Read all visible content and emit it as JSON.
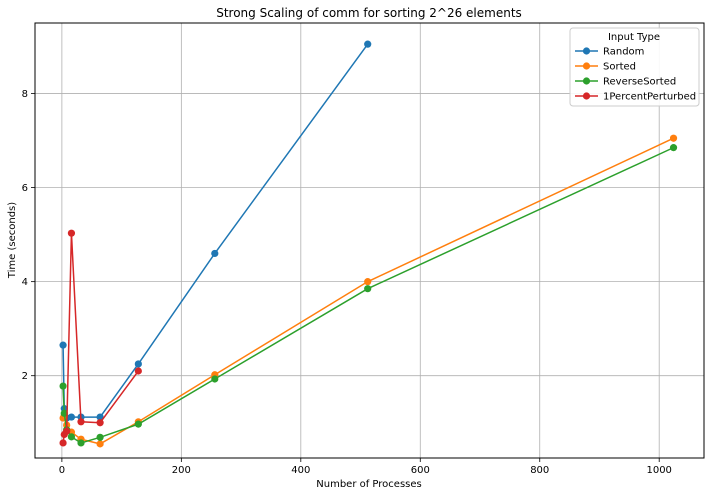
{
  "chart_data": {
    "type": "line",
    "title": "Strong Scaling of comm for sorting 2^26 elements",
    "xlabel": "Number of Processes",
    "ylabel": "Time (seconds)",
    "xlim": [
      -45,
      1075
    ],
    "ylim": [
      0.25,
      9.5
    ],
    "xticks": [
      0,
      200,
      400,
      600,
      800,
      1000
    ],
    "yticks": [
      2,
      4,
      6,
      8
    ],
    "grid": true,
    "legend": {
      "title": "Input Type",
      "placement": "top-right"
    },
    "series": [
      {
        "name": "Random",
        "color": "#1f77b4",
        "x": [
          2,
          4,
          8,
          16,
          32,
          64,
          128,
          256,
          512
        ],
        "y": [
          2.65,
          1.3,
          1.1,
          1.12,
          1.12,
          1.12,
          2.25,
          4.6,
          9.05
        ]
      },
      {
        "name": "Sorted",
        "color": "#ff7f0e",
        "x": [
          2,
          4,
          8,
          16,
          32,
          64,
          128,
          256,
          512,
          1024
        ],
        "y": [
          1.1,
          1.15,
          0.95,
          0.8,
          0.65,
          0.55,
          1.02,
          2.02,
          4.0,
          7.05
        ]
      },
      {
        "name": "ReverseSorted",
        "color": "#2ca02c",
        "x": [
          2,
          4,
          8,
          16,
          32,
          64,
          128,
          256,
          512,
          1024
        ],
        "y": [
          1.78,
          1.2,
          0.85,
          0.7,
          0.57,
          0.69,
          0.97,
          1.93,
          3.85,
          6.85
        ]
      },
      {
        "name": "1PercentPerturbed",
        "color": "#d62728",
        "x": [
          2,
          4,
          8,
          16,
          32,
          64,
          128
        ],
        "y": [
          0.57,
          0.75,
          0.82,
          5.03,
          1.02,
          1.0,
          2.1
        ]
      }
    ]
  }
}
